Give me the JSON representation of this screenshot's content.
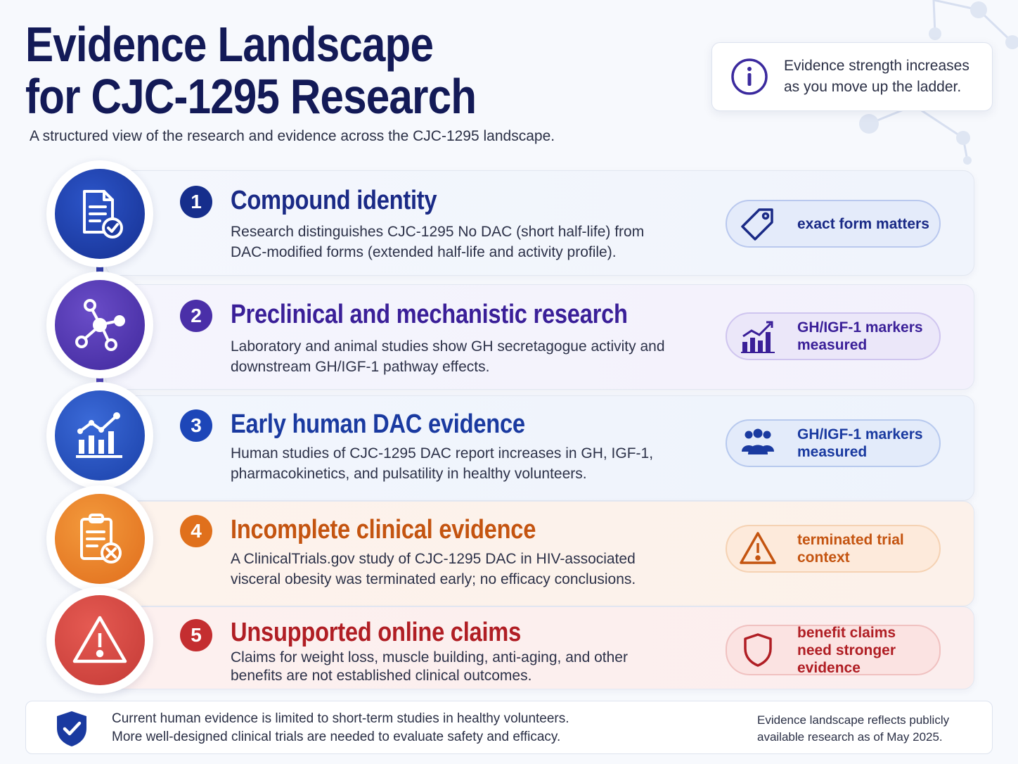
{
  "header": {
    "title": "Evidence Landscape for CJC-1295 Research",
    "subtitle": "A structured view of the research and evidence across the CJC-1295 landscape."
  },
  "info_box": {
    "icon": "info-icon",
    "text": "Evidence strength increases as you move up the ladder."
  },
  "steps": [
    {
      "number": "1",
      "title": "Compound identity",
      "description": "Research distinguishes CJC-1295 No DAC (short half-life) from DAC-modified forms (extended half-life and activity profile).",
      "icon": "document-check-icon",
      "tag": {
        "icon": "tag-icon",
        "label": "exact form matters"
      },
      "color": "#1a3a9e"
    },
    {
      "number": "2",
      "title": "Preclinical and mechanistic research",
      "description": "Laboratory and animal studies show GH secretagogue activity and downstream GH/IGF-1 pathway effects.",
      "icon": "molecule-network-icon",
      "tag": {
        "icon": "bar-chart-trend-icon",
        "label": "GH/IGF-1 markers measured"
      },
      "color": "#4a2fa8"
    },
    {
      "number": "3",
      "title": "Early human DAC evidence",
      "description": "Human studies of CJC-1295 DAC report increases in GH, IGF-1, pharmacokinetics, and pulsatility in healthy volunteers.",
      "icon": "growth-chart-icon",
      "tag": {
        "icon": "people-group-icon",
        "label": "GH/IGF-1 markers measured"
      },
      "color": "#1d46b8"
    },
    {
      "number": "4",
      "title": "Incomplete clinical evidence",
      "description": "A ClinicalTrials.gov study of CJC-1295 DAC in HIV-associated visceral obesity was terminated early; no efficacy conclusions.",
      "icon": "clipboard-x-icon",
      "tag": {
        "icon": "warning-triangle-icon",
        "label": "terminated trial context"
      },
      "color": "#cc5a12"
    },
    {
      "number": "5",
      "title": "Unsupported online claims",
      "description": "Claims for weight loss, muscle building, anti-aging, and other benefits are not established clinical outcomes.",
      "icon": "warning-triangle-icon",
      "tag": {
        "icon": "shield-icon",
        "label": "benefit claims need stronger evidence"
      },
      "color": "#b8252a"
    }
  ],
  "footer": {
    "icon": "shield-check-icon",
    "line1": "Current human evidence is limited to short-term studies in healthy volunteers.",
    "line2": "More well-designed clinical trials are needed to evaluate safety and efficacy.",
    "note": "Evidence landscape reflects publicly available research as of May 2025."
  }
}
